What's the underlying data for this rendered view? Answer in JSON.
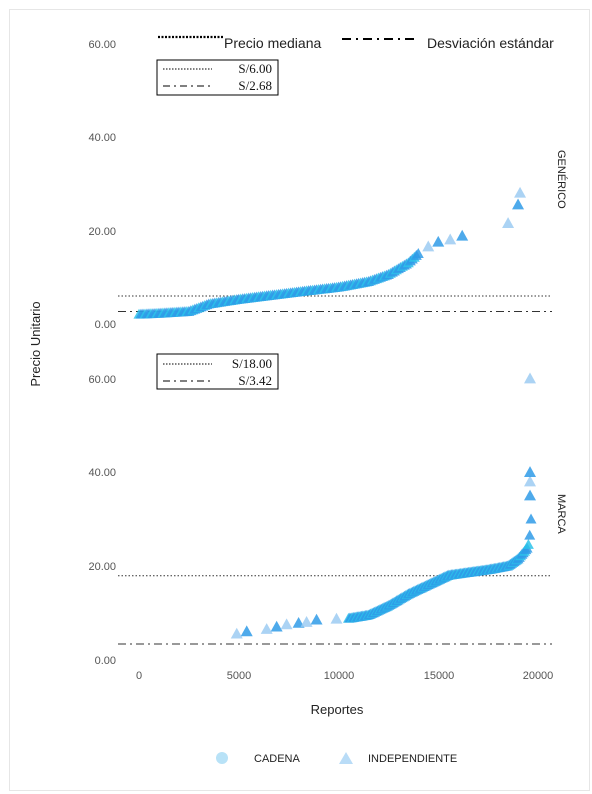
{
  "chart_data": {
    "type": "scatter",
    "xlabel": "Reportes",
    "ylabel": "Precio Unitario",
    "x_ticks": [
      "0",
      "5000",
      "10000",
      "15000",
      "20000"
    ],
    "xlim": [
      0,
      20000
    ],
    "line_legend": {
      "median_label": "Precio mediana",
      "sd_label": "Desviación estándar"
    },
    "point_legend": [
      {
        "name": "CADENA",
        "shape": "circle",
        "color": "#7ec8f0"
      },
      {
        "name": "INDEPENDIENTE",
        "shape": "triangle",
        "color": "#a9d4f7"
      }
    ],
    "colors": {
      "main_points": "#2f9be8",
      "light_points": "#9ccbf2",
      "cyan_points": "#2bc3ea"
    },
    "panels": [
      {
        "facet": "GENÉRICO",
        "ylim": [
          0,
          60
        ],
        "y_ticks": [
          "0.00",
          "20.00",
          "40.00",
          "60.00"
        ],
        "median": 6.0,
        "sd": 2.68,
        "median_label": "S/6.00",
        "sd_label": "S/2.68",
        "curve": [
          [
            0,
            2.0
          ],
          [
            1000,
            2.2
          ],
          [
            2500,
            2.6
          ],
          [
            3500,
            4.2
          ],
          [
            5000,
            5.2
          ],
          [
            6500,
            6.0
          ],
          [
            8000,
            6.8
          ],
          [
            10000,
            7.8
          ],
          [
            11500,
            9.0
          ],
          [
            12500,
            10.5
          ],
          [
            13500,
            13.0
          ],
          [
            14000,
            15.0
          ]
        ],
        "outliers": [
          [
            14500,
            16.5
          ],
          [
            15000,
            17.5
          ],
          [
            15600,
            18.0
          ],
          [
            16200,
            18.8
          ],
          [
            18500,
            21.5
          ],
          [
            19000,
            25.5
          ],
          [
            19100,
            28.0
          ]
        ]
      },
      {
        "facet": "MARCA",
        "ylim": [
          0,
          60
        ],
        "y_ticks": [
          "0.00",
          "20.00",
          "40.00",
          "60.00"
        ],
        "median": 18.0,
        "sd": 3.42,
        "median_label": "S/18.00",
        "sd_label": "S/3.42",
        "curve": [
          [
            10500,
            8.8
          ],
          [
            11500,
            9.5
          ],
          [
            12500,
            11.5
          ],
          [
            13500,
            14.0
          ],
          [
            14500,
            16.0
          ],
          [
            15500,
            18.0
          ],
          [
            16500,
            18.6
          ],
          [
            17500,
            19.2
          ],
          [
            18500,
            20.0
          ],
          [
            19000,
            21.5
          ],
          [
            19500,
            24.0
          ],
          [
            19600,
            27.0
          ],
          [
            19650,
            30.0
          ]
        ],
        "outliers": [
          [
            4900,
            5.5
          ],
          [
            5400,
            6.0
          ],
          [
            6400,
            6.5
          ],
          [
            6900,
            7.0
          ],
          [
            7400,
            7.5
          ],
          [
            8000,
            7.8
          ],
          [
            8400,
            8.0
          ],
          [
            8900,
            8.5
          ],
          [
            9900,
            8.7
          ],
          [
            19600,
            35.0
          ],
          [
            19600,
            38.0
          ],
          [
            19600,
            40.0
          ],
          [
            19600,
            60.0
          ]
        ]
      }
    ]
  }
}
